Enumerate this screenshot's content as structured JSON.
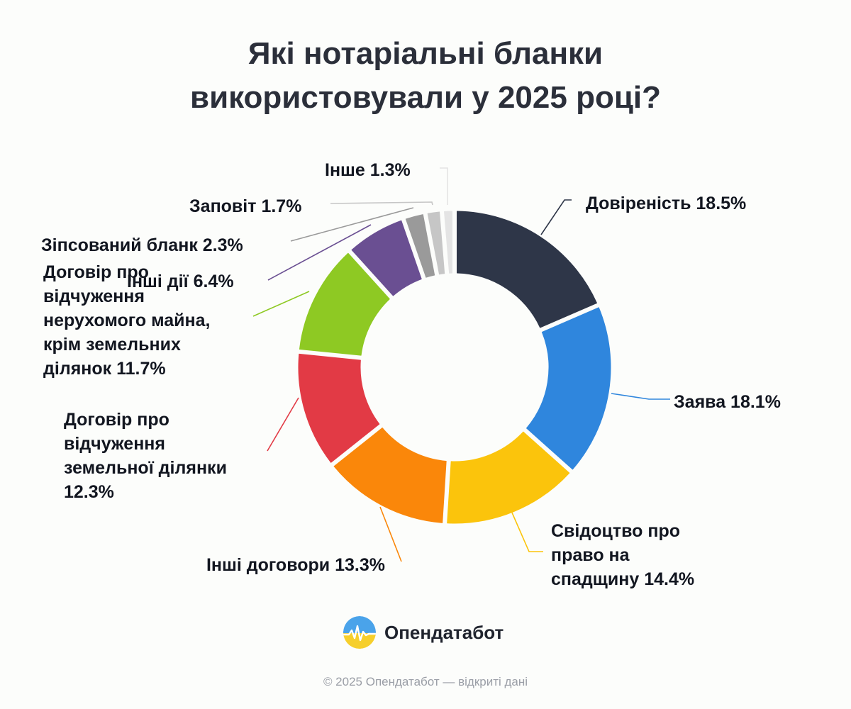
{
  "title_lines": [
    "Які нотаріальні бланки",
    "використовували у 2025 році?"
  ],
  "brand": {
    "name": "Опендатабот",
    "icon": "opendatabot-logo-icon"
  },
  "footer": "© 2025 Опендатабот — відкриті дані",
  "chart_data": {
    "type": "pie",
    "donut": true,
    "unit": "%",
    "categories": [
      "Довіреність",
      "Заява",
      "Свідоцтво про право на спадщину",
      "Інші договори",
      "Договір про відчуження земельної ділянки",
      "Договір про відчуження нерухомого майна, крім земельних ділянок",
      "Інші дії",
      "Зіпсований бланк",
      "Заповіт",
      "Інше"
    ],
    "values": [
      18.5,
      18.1,
      14.4,
      13.3,
      12.3,
      11.7,
      6.4,
      2.3,
      1.7,
      1.3
    ],
    "colors": [
      "#2e3648",
      "#2f86dd",
      "#fbc40c",
      "#fa870a",
      "#e23a45",
      "#8ec923",
      "#6a4f92",
      "#9a9a9a",
      "#c6c6c6",
      "#e4e4e4"
    ],
    "labels": [
      [
        "Довіреність 18.5%"
      ],
      [
        "Заява 18.1%"
      ],
      [
        "Свідоцтво про",
        "право на",
        "спадщину 14.4%"
      ],
      [
        "Інші договори 13.3%"
      ],
      [
        "Договір про",
        "відчуження",
        "земельної ділянки",
        "12.3%"
      ],
      [
        "Договір про",
        "відчуження",
        "нерухомого майна,",
        "крім земельних",
        "ділянок 11.7%"
      ],
      [
        "Інші дії 6.4%"
      ],
      [
        "Зіпсований бланк 2.3%"
      ],
      [
        "Заповіт 1.7%"
      ],
      [
        "Інше 1.3%"
      ]
    ],
    "legend": "none"
  }
}
